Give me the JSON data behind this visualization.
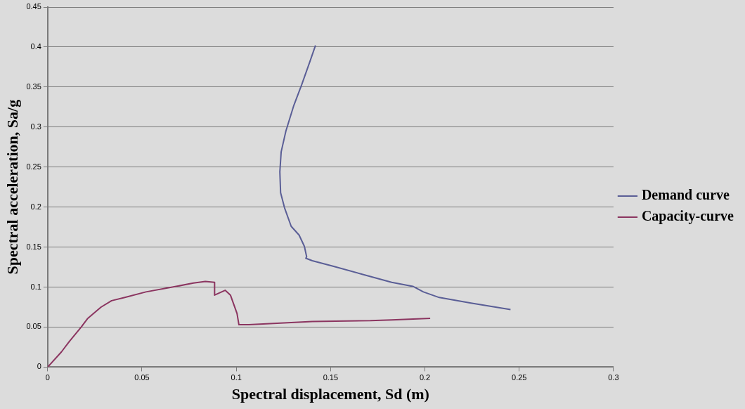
{
  "chart_data": {
    "type": "line",
    "xlabel": "Spectral displacement, Sd (m)",
    "ylabel": "Spectral acceleration, Sa/g",
    "xlim": [
      0,
      0.3
    ],
    "xticks": [
      0,
      0.05,
      0.1,
      0.15,
      0.2,
      0.25,
      0.3
    ],
    "ylim": [
      0,
      0.45
    ],
    "yticks": [
      0,
      0.05,
      0.1,
      0.15,
      0.2,
      0.25,
      0.3,
      0.35,
      0.4,
      0.45
    ],
    "grid": "y",
    "legend": "right",
    "series": [
      {
        "name": "Demand curve",
        "color": "#5a5e96",
        "x": [
          0.142,
          0.1389,
          0.1347,
          0.1305,
          0.1263,
          0.1238,
          0.1231,
          0.1235,
          0.1256,
          0.1291,
          0.1333,
          0.1361,
          0.1373,
          0.1369,
          0.1403,
          0.1516,
          0.1684,
          0.1824,
          0.1936,
          0.1992,
          0.2076,
          0.2244,
          0.2454
        ],
        "values": [
          0.402,
          0.381,
          0.353,
          0.327,
          0.295,
          0.269,
          0.244,
          0.218,
          0.199,
          0.176,
          0.165,
          0.151,
          0.138,
          0.136,
          0.133,
          0.126,
          0.115,
          0.106,
          0.101,
          0.094,
          0.087,
          0.08,
          0.072
        ]
      },
      {
        "name": "Capacity-curve",
        "color": "#8b3560",
        "x": [
          0,
          0.0073,
          0.0115,
          0.0178,
          0.0213,
          0.0283,
          0.0339,
          0.0409,
          0.0521,
          0.0661,
          0.0773,
          0.0836,
          0.0885,
          0.0885,
          0.0941,
          0.0969,
          0.1004,
          0.1014,
          0.1067,
          0.1403,
          0.1711,
          0.1824,
          0.2028
        ],
        "values": [
          0,
          0.019,
          0.032,
          0.05,
          0.061,
          0.075,
          0.083,
          0.087,
          0.094,
          0.1,
          0.105,
          0.107,
          0.106,
          0.09,
          0.096,
          0.09,
          0.067,
          0.053,
          0.053,
          0.057,
          0.058,
          0.059,
          0.061
        ]
      }
    ]
  }
}
